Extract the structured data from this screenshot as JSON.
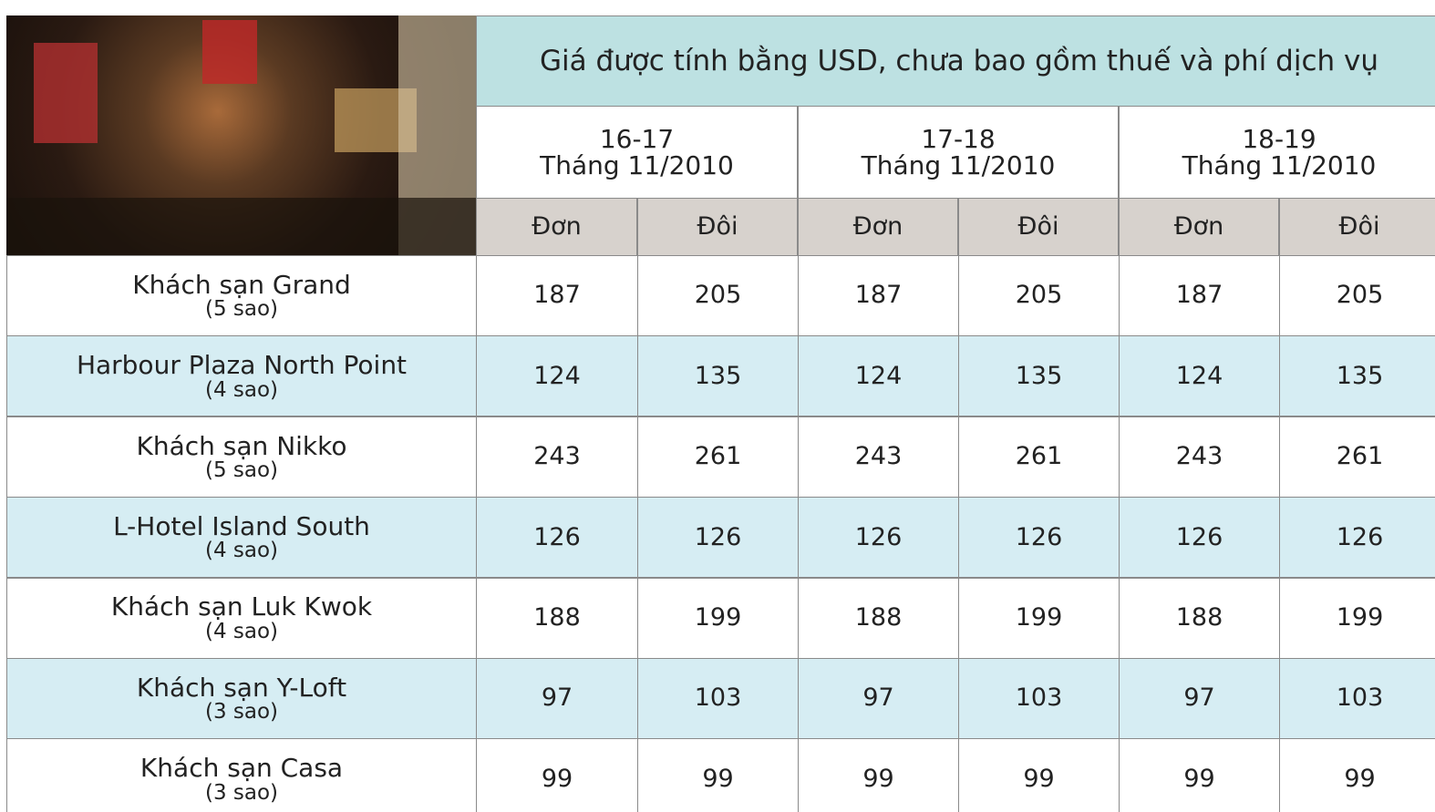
{
  "header": {
    "caption": "Giá được tính bằng USD, chưa bao gồm thuế và phí dịch vụ"
  },
  "periods": [
    {
      "dates": "16-17",
      "month": "Tháng 11/2010",
      "single": "Đơn",
      "double": "Đôi"
    },
    {
      "dates": "17-18",
      "month": "Tháng 11/2010",
      "single": "Đơn",
      "double": "Đôi"
    },
    {
      "dates": "18-19",
      "month": "Tháng 11/2010",
      "single": "Đơn",
      "double": "Đôi"
    }
  ],
  "table": {
    "rows": [
      {
        "name": "Khách sạn Grand",
        "stars": "(5 sao)",
        "prices": [
          187,
          205,
          187,
          205,
          187,
          205
        ]
      },
      {
        "name": "Harbour Plaza North Point",
        "stars": "(4 sao)",
        "prices": [
          124,
          135,
          124,
          135,
          124,
          135
        ]
      },
      {
        "name": "Khách sạn Nikko",
        "stars": "(5 sao)",
        "prices": [
          243,
          261,
          243,
          261,
          243,
          261
        ]
      },
      {
        "name": "L-Hotel Island South",
        "stars": "(4 sao)",
        "prices": [
          126,
          126,
          126,
          126,
          126,
          126
        ]
      },
      {
        "name": "Khách sạn Luk Kwok",
        "stars": "(4 sao)",
        "prices": [
          188,
          199,
          188,
          199,
          188,
          199
        ]
      },
      {
        "name": "Khách sạn Y-Loft",
        "stars": "(3 sao)",
        "prices": [
          97,
          103,
          97,
          103,
          97,
          103
        ]
      },
      {
        "name": "Khách sạn Casa",
        "stars": "(3 sao)",
        "prices": [
          99,
          99,
          99,
          99,
          99,
          99
        ]
      }
    ]
  }
}
